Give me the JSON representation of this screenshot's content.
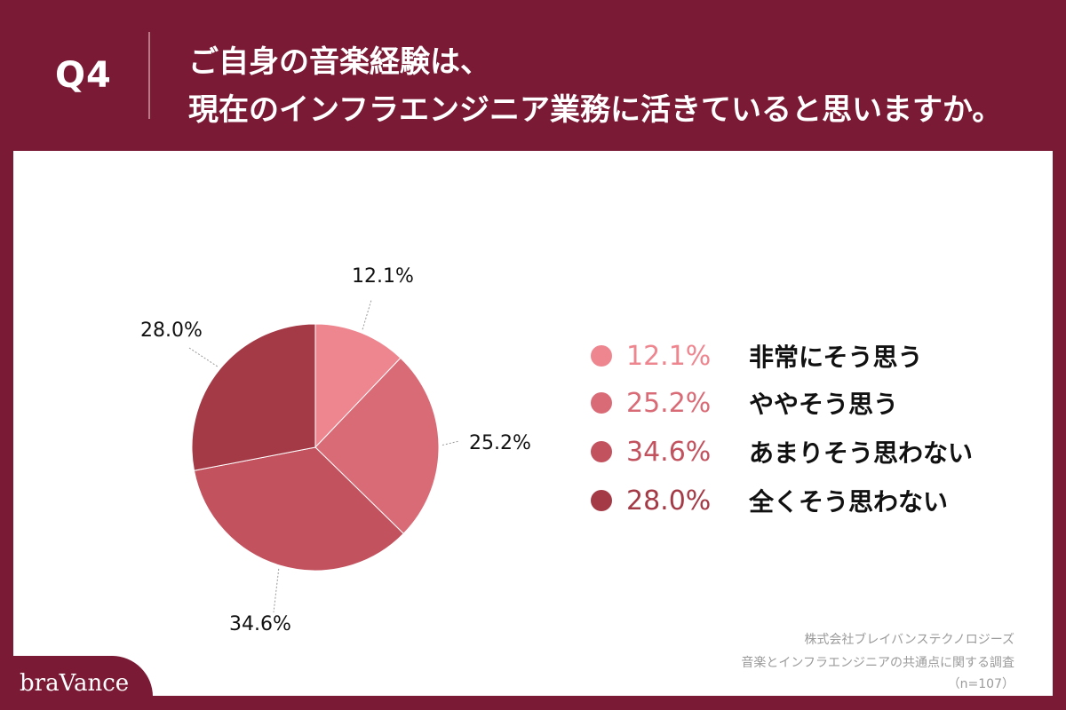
{
  "header": {
    "question_number": "Q4",
    "question_line1": "ご自身の音楽経験は、",
    "question_line2": "現在のインフラエンジニア業務に活きていると思いますか。"
  },
  "chart_data": {
    "type": "pie",
    "slices": [
      {
        "label": "非常にそう思う",
        "value": 12.1,
        "display": "12.1%",
        "color": "#ee8690"
      },
      {
        "label": "ややそう思う",
        "value": 25.2,
        "display": "25.2%",
        "color": "#d96b77"
      },
      {
        "label": "あまりそう思わない",
        "value": 34.6,
        "display": "34.6%",
        "color": "#c3525f"
      },
      {
        "label": "全くそう思わない",
        "value": 28.0,
        "display": "28.0%",
        "color": "#a53a47"
      }
    ]
  },
  "source": {
    "line1": "株式会社ブレイバンステクノロジーズ",
    "line2": "音楽とインフラエンジニアの共通点に関する調査",
    "line3": "（n=107）"
  },
  "brand": {
    "logo_text": "braVance"
  }
}
